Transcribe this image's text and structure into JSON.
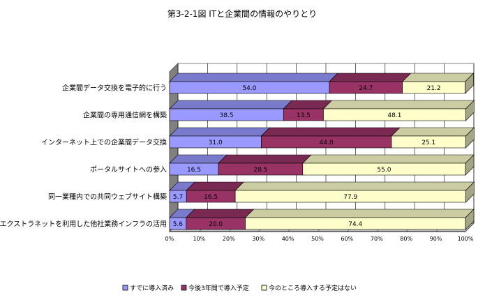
{
  "chart_data": {
    "type": "bar",
    "orientation": "horizontal",
    "stacked": "percent",
    "title": "第3-2-1図  ITと企業間の情報のやりとり",
    "categories": [
      "企業間データ交換を電子的に行う",
      "企業間の専用通信網を構築",
      "インターネット上での企業間データ交換",
      "ポータルサイトへの参入",
      "同一業種内での共同ウェブサイト構築",
      "エクストラネットを利用した他社業務インフラの活用"
    ],
    "series": [
      {
        "name": "すでに導入済み",
        "color": "#9999ff",
        "values": [
          54.0,
          38.5,
          31.0,
          16.5,
          5.7,
          5.6
        ]
      },
      {
        "name": "今後3年間で導入予定",
        "color": "#993366",
        "values": [
          24.7,
          13.5,
          44.0,
          28.5,
          16.5,
          20.0
        ]
      },
      {
        "name": "今のところ導入する予定はない",
        "color": "#ffffcc",
        "values": [
          21.2,
          48.1,
          25.1,
          55.0,
          77.9,
          74.4
        ]
      }
    ],
    "xlim": [
      0,
      100
    ],
    "x_ticks": [
      "0%",
      "10%",
      "20%",
      "30%",
      "40%",
      "50%",
      "60%",
      "70%",
      "80%",
      "90%",
      "100%"
    ],
    "xlabel": "",
    "ylabel": "",
    "legend_position": "bottom",
    "grid": true,
    "style": "3d"
  }
}
